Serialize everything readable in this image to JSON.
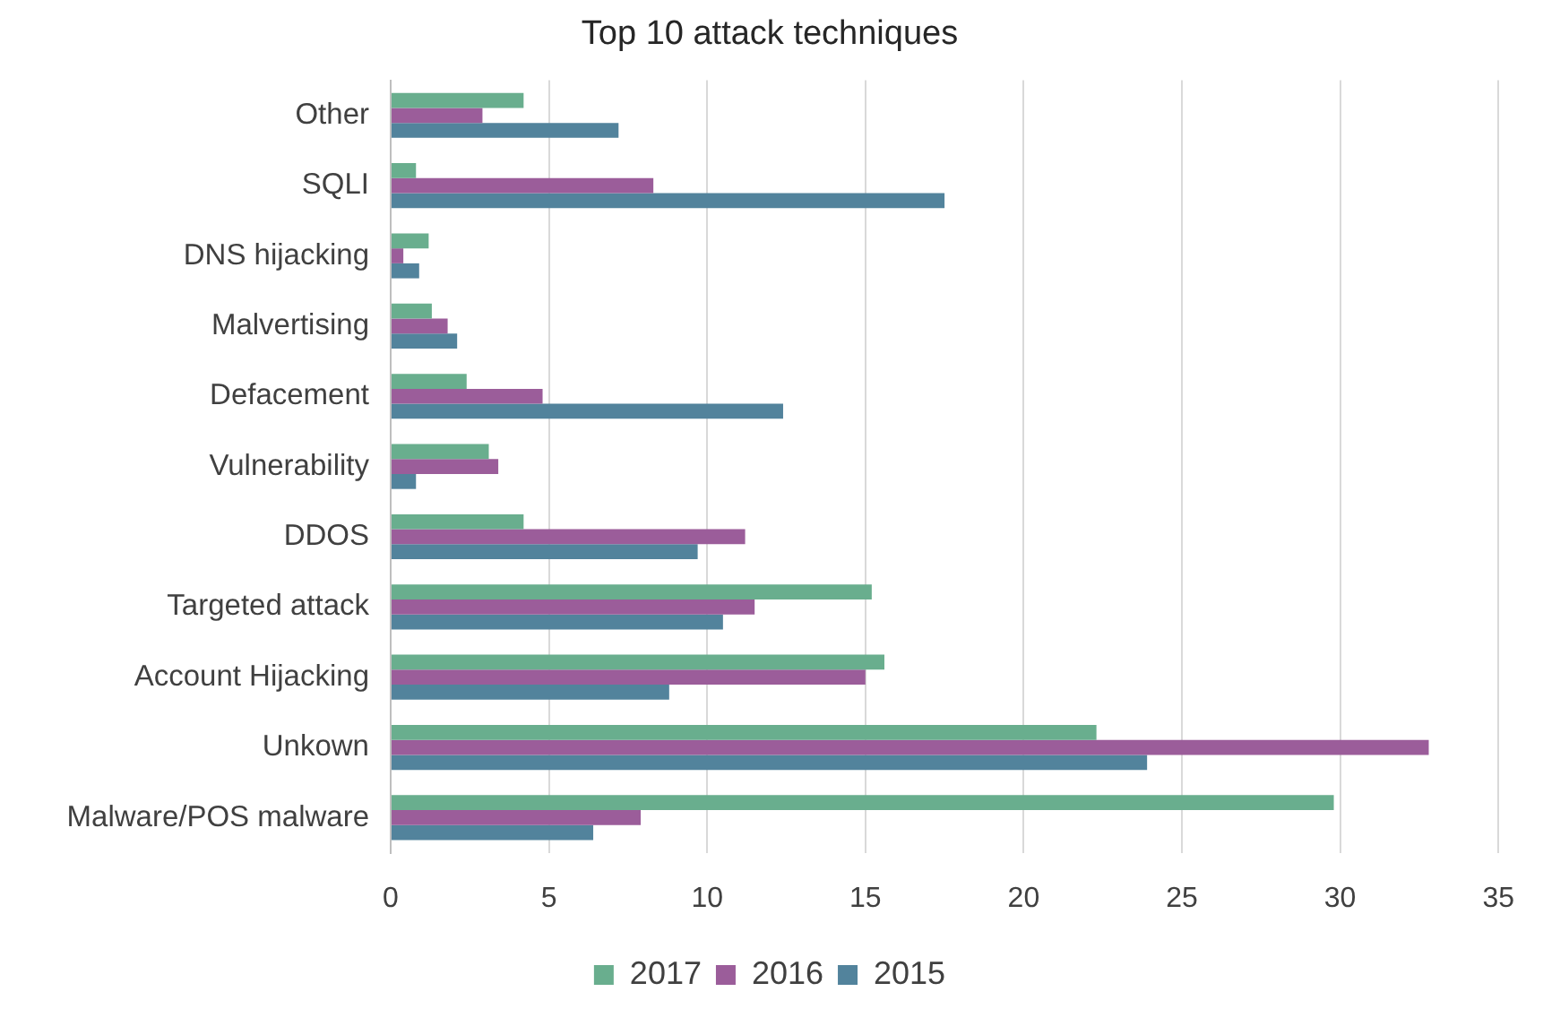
{
  "chart_data": {
    "type": "bar",
    "orientation": "horizontal",
    "title": "Top 10 attack techniques",
    "categories": [
      "Other",
      "SQLI",
      "DNS hijacking",
      "Malvertising",
      "Defacement",
      "Vulnerability",
      "DDOS",
      "Targeted attack",
      "Account Hijacking",
      "Unkown",
      "Malware/POS malware"
    ],
    "series": [
      {
        "name": "2017",
        "color": "#69ae8e",
        "values": [
          4.2,
          0.8,
          1.2,
          1.3,
          2.4,
          3.1,
          4.2,
          15.2,
          15.6,
          22.3,
          29.8
        ]
      },
      {
        "name": "2016",
        "color": "#9b5d9a",
        "values": [
          2.9,
          8.3,
          0.4,
          1.8,
          4.8,
          3.4,
          11.2,
          11.5,
          15.0,
          32.8,
          7.9
        ]
      },
      {
        "name": "2015",
        "color": "#52839c",
        "values": [
          7.2,
          17.5,
          0.9,
          2.1,
          12.4,
          0.8,
          9.7,
          10.5,
          8.8,
          23.9,
          6.4
        ]
      }
    ],
    "xlim": [
      0,
      35
    ],
    "xticks": [
      0,
      5,
      10,
      15,
      20,
      25,
      30,
      35
    ],
    "grid": "x",
    "legend": "bottom"
  }
}
